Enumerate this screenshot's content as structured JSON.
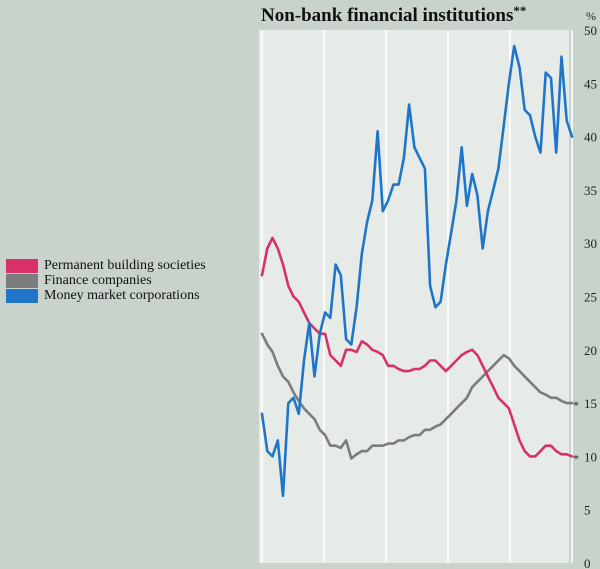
{
  "title": "Non-bank financial institutions",
  "title_marker": "**",
  "chart_data": {
    "type": "line",
    "title": "Non-bank financial institutions",
    "ylabel": "%",
    "ylim": [
      0,
      50
    ],
    "yticks": [
      "0",
      "5",
      "10",
      "15",
      "20",
      "25",
      "30",
      "35",
      "40",
      "45",
      "50"
    ],
    "grid": "vertical",
    "legend_position": "left",
    "end_marker": "*",
    "series": [
      {
        "name": "Permanent building societies",
        "color": "#d8306a",
        "values": [
          27.0,
          29.5,
          30.5,
          29.5,
          28.0,
          26.0,
          25.0,
          24.5,
          23.5,
          22.5,
          22.0,
          21.5,
          21.5,
          19.5,
          19.0,
          18.5,
          20.0,
          20.0,
          19.8,
          20.8,
          20.5,
          20.0,
          19.8,
          19.5,
          18.5,
          18.5,
          18.2,
          18.0,
          18.0,
          18.2,
          18.2,
          18.5,
          19.0,
          19.0,
          18.5,
          18.0,
          18.5,
          19.0,
          19.5,
          19.8,
          20.0,
          19.5,
          18.5,
          17.5,
          16.5,
          15.5,
          15.0,
          14.5,
          13.0,
          11.5,
          10.5,
          10.0,
          10.0,
          10.5,
          11.0,
          11.0,
          10.5,
          10.2,
          10.2,
          10.0
        ]
      },
      {
        "name": "Finance companies",
        "color": "#7c7c7c",
        "values": [
          21.5,
          20.5,
          19.8,
          18.5,
          17.5,
          17.0,
          16.0,
          15.2,
          14.5,
          14.0,
          13.5,
          12.5,
          12.0,
          11.0,
          11.0,
          10.8,
          11.5,
          9.8,
          10.2,
          10.5,
          10.5,
          11.0,
          11.0,
          11.0,
          11.2,
          11.2,
          11.5,
          11.5,
          11.8,
          12.0,
          12.0,
          12.5,
          12.5,
          12.8,
          13.0,
          13.5,
          14.0,
          14.5,
          15.0,
          15.5,
          16.5,
          17.0,
          17.5,
          18.0,
          18.5,
          19.0,
          19.5,
          19.2,
          18.5,
          18.0,
          17.5,
          17.0,
          16.5,
          16.0,
          15.8,
          15.5,
          15.5,
          15.2,
          15.0,
          15.0
        ]
      },
      {
        "name": "Money market corporations",
        "color": "#1f76c8",
        "values": [
          14.0,
          10.5,
          10.0,
          11.5,
          6.3,
          15.0,
          15.5,
          14.0,
          19.0,
          22.5,
          17.5,
          21.5,
          23.5,
          23.0,
          28.0,
          27.0,
          21.0,
          20.5,
          24.0,
          29.0,
          32.0,
          34.0,
          40.5,
          33.0,
          34.0,
          35.5,
          35.5,
          38.0,
          43.0,
          39.0,
          38.0,
          37.0,
          26.0,
          24.0,
          24.5,
          28.0,
          31.0,
          34.0,
          39.0,
          33.5,
          36.5,
          34.5,
          29.5,
          33.0,
          35.0,
          37.0,
          41.0,
          45.0,
          48.5,
          46.5,
          42.5,
          42.0,
          40.0,
          38.5,
          46.0,
          45.5,
          38.5,
          47.5,
          41.5,
          40.0
        ]
      }
    ]
  }
}
